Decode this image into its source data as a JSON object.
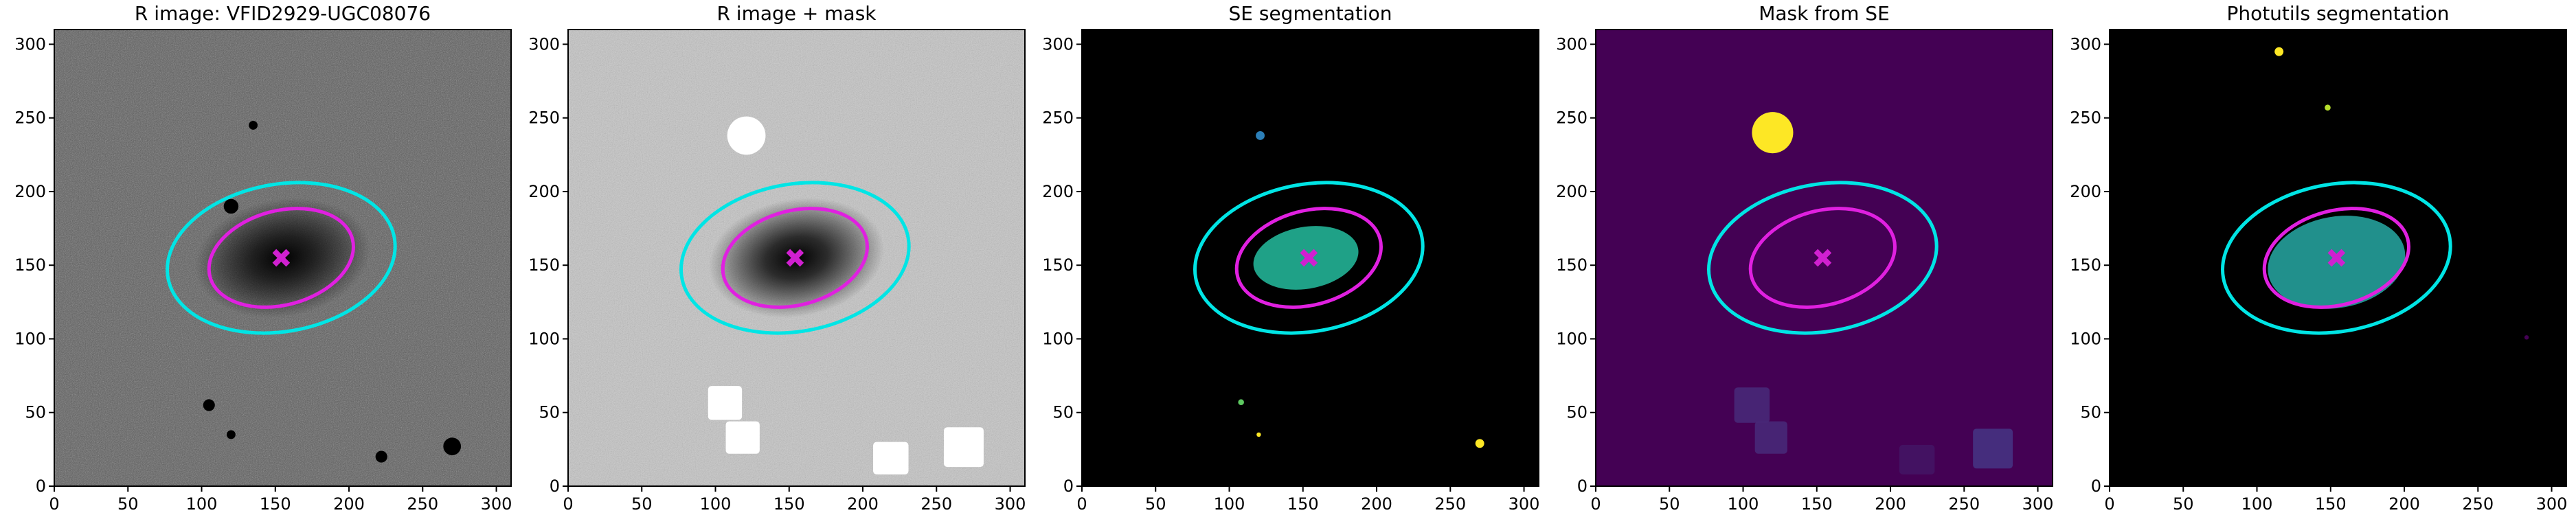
{
  "chart_data": [
    {
      "type": "image",
      "title": "R image: VFID2929-UGC08076",
      "background": "#5a5a5a",
      "xlim": [
        0,
        310
      ],
      "ylim": [
        0,
        310
      ],
      "xticks": [
        0,
        50,
        100,
        150,
        200,
        250,
        300
      ],
      "yticks": [
        0,
        50,
        100,
        150,
        200,
        250,
        300
      ],
      "ellipses": [
        {
          "center": [
            154,
            155
          ],
          "width": 156,
          "height": 100,
          "angle": 10,
          "color": "#00e5e5"
        },
        {
          "center": [
            154,
            155
          ],
          "width": 100,
          "height": 64,
          "angle": 15,
          "color": "#e020e0"
        }
      ],
      "marker": {
        "center": [
          154,
          155
        ],
        "color": "#d020d0"
      }
    },
    {
      "type": "image",
      "title": "R image + mask",
      "background": "#c4c4c4",
      "xlim": [
        0,
        310
      ],
      "ylim": [
        0,
        310
      ],
      "xticks": [
        0,
        50,
        100,
        150,
        200,
        250,
        300
      ],
      "yticks": [
        0,
        50,
        100,
        150,
        200,
        250,
        300
      ],
      "ellipses": [
        {
          "center": [
            154,
            155
          ],
          "width": 156,
          "height": 100,
          "angle": 10,
          "color": "#00e5e5"
        },
        {
          "center": [
            154,
            155
          ],
          "width": 100,
          "height": 64,
          "angle": 15,
          "color": "#e020e0"
        }
      ],
      "marker": {
        "center": [
          154,
          155
        ],
        "color": "#d020d0"
      }
    },
    {
      "type": "image",
      "title": "SE segmentation",
      "background": "#000000",
      "xlim": [
        0,
        310
      ],
      "ylim": [
        0,
        310
      ],
      "xticks": [
        0,
        50,
        100,
        150,
        200,
        250,
        300
      ],
      "yticks": [
        0,
        50,
        100,
        150,
        200,
        250,
        300
      ],
      "ellipses": [
        {
          "center": [
            154,
            155
          ],
          "width": 156,
          "height": 100,
          "angle": 10,
          "color": "#00e5e5"
        },
        {
          "center": [
            154,
            155
          ],
          "width": 100,
          "height": 64,
          "angle": 15,
          "color": "#e020e0"
        }
      ],
      "marker": {
        "center": [
          154,
          155
        ],
        "color": "#d020d0"
      }
    },
    {
      "type": "image",
      "title": "Mask from SE",
      "background": "#440154",
      "xlim": [
        0,
        310
      ],
      "ylim": [
        0,
        310
      ],
      "xticks": [
        0,
        50,
        100,
        150,
        200,
        250,
        300
      ],
      "yticks": [
        0,
        50,
        100,
        150,
        200,
        250,
        300
      ],
      "ellipses": [
        {
          "center": [
            154,
            155
          ],
          "width": 156,
          "height": 100,
          "angle": 10,
          "color": "#00e5e5"
        },
        {
          "center": [
            154,
            155
          ],
          "width": 100,
          "height": 64,
          "angle": 15,
          "color": "#e020e0"
        }
      ],
      "marker": {
        "center": [
          154,
          155
        ],
        "color": "#d020d0"
      }
    },
    {
      "type": "image",
      "title": "Photutils segmentation",
      "background": "#000000",
      "xlim": [
        0,
        310
      ],
      "ylim": [
        0,
        310
      ],
      "xticks": [
        0,
        50,
        100,
        150,
        200,
        250,
        300
      ],
      "yticks": [
        0,
        50,
        100,
        150,
        200,
        250,
        300
      ],
      "ellipses": [
        {
          "center": [
            154,
            155
          ],
          "width": 156,
          "height": 100,
          "angle": 10,
          "color": "#00e5e5"
        },
        {
          "center": [
            154,
            155
          ],
          "width": 100,
          "height": 64,
          "angle": 15,
          "color": "#e020e0"
        }
      ],
      "marker": {
        "center": [
          154,
          155
        ],
        "color": "#d020d0"
      }
    }
  ]
}
